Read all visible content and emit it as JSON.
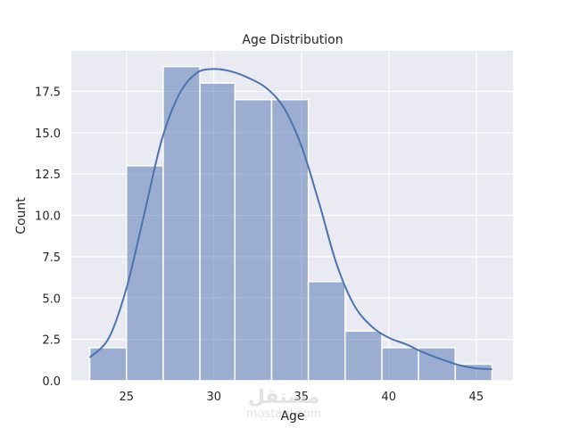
{
  "chart_data": {
    "type": "bar",
    "title": "Age Distribution",
    "xlabel": "Age",
    "ylabel": "Count",
    "bin_edges": [
      22.9,
      25.0,
      27.1,
      29.2,
      31.2,
      33.3,
      35.4,
      37.5,
      39.6,
      41.7,
      43.8,
      45.9
    ],
    "values": [
      2,
      13,
      19,
      18,
      17,
      17,
      6,
      3,
      2,
      2,
      1
    ],
    "kde": {
      "x": [
        22.9,
        24,
        25,
        26,
        27,
        28,
        29,
        30,
        31,
        32,
        33,
        34,
        35,
        36,
        37,
        38,
        39,
        40,
        41,
        42,
        43,
        44,
        45,
        45.9
      ],
      "y": [
        1.4,
        2.6,
        5.6,
        10.0,
        14.5,
        17.3,
        18.6,
        18.85,
        18.7,
        18.3,
        17.7,
        16.5,
        14.2,
        10.8,
        7.1,
        4.6,
        3.3,
        2.6,
        2.2,
        1.7,
        1.3,
        0.95,
        0.75,
        0.7
      ]
    },
    "xticks": [
      "25",
      "30",
      "35",
      "40",
      "45"
    ],
    "yticks": [
      "0.0",
      "2.5",
      "5.0",
      "7.5",
      "10.0",
      "12.5",
      "15.0",
      "17.5"
    ],
    "xlim": [
      21.85,
      47.1
    ],
    "ylim": [
      0,
      19.95
    ],
    "grid": true,
    "legend": null,
    "colors": {
      "bar": "#4c72b0",
      "bar_alpha": 0.5,
      "kde": "#4c72b0",
      "background": "#eaeaf2",
      "grid": "#ffffff"
    }
  },
  "watermark": {
    "arabic": "مستقل",
    "latin": "mostaql.com"
  }
}
